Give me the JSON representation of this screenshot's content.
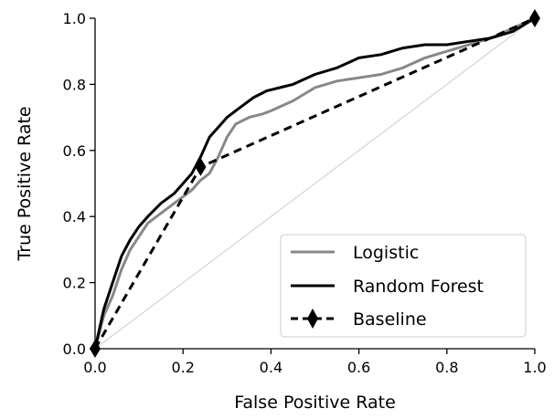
{
  "chart_data": {
    "type": "line",
    "title": "",
    "xlabel": "False Positive Rate",
    "ylabel": "True Positive Rate",
    "xlim": [
      0.0,
      1.0
    ],
    "ylim": [
      0.0,
      1.0
    ],
    "xticks": [
      "0.0",
      "0.2",
      "0.4",
      "0.6",
      "0.8",
      "1.0"
    ],
    "yticks": [
      "0.0",
      "0.2",
      "0.4",
      "0.6",
      "0.8",
      "1.0"
    ],
    "grid": false,
    "legend_position": "lower-right",
    "reference_diagonal": {
      "x": [
        0.0,
        1.0
      ],
      "y": [
        0.0,
        1.0
      ],
      "color": "#cccccc"
    },
    "series": [
      {
        "name": "Logistic",
        "color": "#888888",
        "style": "solid",
        "x": [
          0.0,
          0.01,
          0.02,
          0.04,
          0.06,
          0.08,
          0.1,
          0.12,
          0.15,
          0.18,
          0.2,
          0.22,
          0.24,
          0.26,
          0.28,
          0.3,
          0.32,
          0.35,
          0.38,
          0.4,
          0.45,
          0.5,
          0.55,
          0.6,
          0.65,
          0.7,
          0.75,
          0.8,
          0.85,
          0.9,
          0.95,
          1.0
        ],
        "y": [
          0.0,
          0.05,
          0.1,
          0.16,
          0.24,
          0.3,
          0.34,
          0.38,
          0.41,
          0.44,
          0.46,
          0.48,
          0.51,
          0.53,
          0.58,
          0.64,
          0.68,
          0.7,
          0.71,
          0.72,
          0.75,
          0.79,
          0.81,
          0.82,
          0.83,
          0.85,
          0.88,
          0.9,
          0.92,
          0.94,
          0.97,
          1.0
        ]
      },
      {
        "name": "Random Forest",
        "color": "#000000",
        "style": "solid",
        "x": [
          0.0,
          0.01,
          0.02,
          0.04,
          0.06,
          0.08,
          0.1,
          0.12,
          0.15,
          0.18,
          0.2,
          0.22,
          0.24,
          0.26,
          0.28,
          0.3,
          0.33,
          0.36,
          0.39,
          0.42,
          0.45,
          0.5,
          0.55,
          0.6,
          0.65,
          0.7,
          0.75,
          0.8,
          0.85,
          0.9,
          0.95,
          1.0
        ],
        "y": [
          0.0,
          0.06,
          0.12,
          0.2,
          0.28,
          0.33,
          0.37,
          0.4,
          0.44,
          0.47,
          0.5,
          0.53,
          0.58,
          0.64,
          0.67,
          0.7,
          0.73,
          0.76,
          0.78,
          0.79,
          0.8,
          0.83,
          0.85,
          0.88,
          0.89,
          0.91,
          0.92,
          0.92,
          0.93,
          0.94,
          0.96,
          1.0
        ]
      },
      {
        "name": "Baseline",
        "color": "#000000",
        "style": "dashed",
        "marker": "diamond",
        "x": [
          0.0,
          0.24,
          1.0
        ],
        "y": [
          0.0,
          0.55,
          1.0
        ]
      }
    ]
  }
}
